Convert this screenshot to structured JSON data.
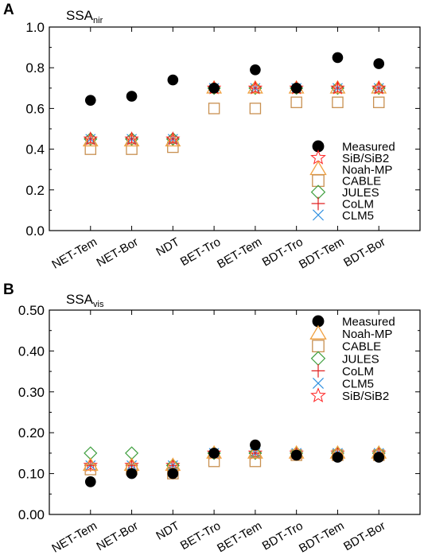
{
  "chart_data": [
    {
      "type": "scatter",
      "panel_label": "A",
      "title_base": "SSA",
      "title_sub": "nir",
      "categories": [
        "NET-Tem",
        "NET-Bor",
        "NDT",
        "BET-Tro",
        "BET-Tem",
        "BDT-Tro",
        "BDT-Tem",
        "BDT-Bor"
      ],
      "ylim": [
        0.0,
        1.0
      ],
      "yticks": [
        0.0,
        0.2,
        0.4,
        0.6,
        0.8,
        1.0
      ],
      "ytick_labels": [
        "0.0",
        "0.2",
        "0.4",
        "0.6",
        "0.8",
        "1.0"
      ],
      "legend_position": "bottom-right",
      "series": [
        {
          "name": "Measured",
          "marker": "filled-circle",
          "color": "#000000",
          "values": [
            0.64,
            0.66,
            0.74,
            0.7,
            0.79,
            0.7,
            0.85,
            0.82
          ]
        },
        {
          "name": "SiB/SiB2",
          "marker": "star",
          "color": "#ff2020",
          "values": [
            0.45,
            0.45,
            0.45,
            0.7,
            0.7,
            0.7,
            0.7,
            0.7
          ]
        },
        {
          "name": "Noah-MP",
          "marker": "triangle",
          "color": "#f0a040",
          "values": [
            0.44,
            0.44,
            0.44,
            0.7,
            0.7,
            0.7,
            0.7,
            0.7
          ]
        },
        {
          "name": "CABLE",
          "marker": "square",
          "color": "#c89050",
          "values": [
            0.4,
            0.4,
            0.41,
            0.6,
            0.6,
            0.63,
            0.63,
            0.63
          ]
        },
        {
          "name": "JULES",
          "marker": "diamond",
          "color": "#40a040",
          "values": [
            0.45,
            0.45,
            0.45,
            0.7,
            0.7,
            0.7,
            0.7,
            0.7
          ]
        },
        {
          "name": "CoLM",
          "marker": "plus",
          "color": "#e02020",
          "values": [
            0.45,
            0.45,
            0.45,
            0.7,
            0.7,
            0.7,
            0.7,
            0.7
          ]
        },
        {
          "name": "CLM5",
          "marker": "x",
          "color": "#3090e0",
          "values": [
            0.45,
            0.45,
            0.45,
            0.7,
            0.7,
            0.7,
            0.7,
            0.7
          ]
        }
      ]
    },
    {
      "type": "scatter",
      "panel_label": "B",
      "title_base": "SSA",
      "title_sub": "vis",
      "categories": [
        "NET-Tem",
        "NET-Bor",
        "NDT",
        "BET-Tro",
        "BET-Tem",
        "BDT-Tro",
        "BDT-Tem",
        "BDT-Bor"
      ],
      "ylim": [
        0.0,
        0.5
      ],
      "yticks": [
        0.0,
        0.1,
        0.2,
        0.3,
        0.4,
        0.5
      ],
      "ytick_labels": [
        "0.00",
        "0.10",
        "0.20",
        "0.30",
        "0.40",
        "0.50"
      ],
      "legend_position": "top-right",
      "series": [
        {
          "name": "Measured",
          "marker": "filled-circle",
          "color": "#000000",
          "values": [
            0.08,
            0.1,
            0.1,
            0.15,
            0.17,
            0.145,
            0.14,
            0.14
          ]
        },
        {
          "name": "Noah-MP",
          "marker": "triangle",
          "color": "#f0a040",
          "values": [
            0.12,
            0.12,
            0.12,
            0.15,
            0.15,
            0.15,
            0.15,
            0.15
          ]
        },
        {
          "name": "CABLE",
          "marker": "square",
          "color": "#c89050",
          "values": [
            0.11,
            0.11,
            0.1,
            0.13,
            0.13,
            0.145,
            0.145,
            0.145
          ]
        },
        {
          "name": "JULES",
          "marker": "diamond",
          "color": "#40a040",
          "values": [
            0.15,
            0.15,
            0.12,
            0.15,
            0.15,
            0.15,
            0.15,
            0.15
          ]
        },
        {
          "name": "CoLM",
          "marker": "plus",
          "color": "#e02020",
          "values": [
            0.12,
            0.12,
            0.12,
            0.15,
            0.15,
            0.15,
            0.15,
            0.15
          ]
        },
        {
          "name": "CLM5",
          "marker": "x",
          "color": "#3090e0",
          "values": [
            0.12,
            0.12,
            0.12,
            0.15,
            0.15,
            0.15,
            0.15,
            0.15
          ]
        },
        {
          "name": "SiB/SiB2",
          "marker": "star",
          "color": "#ff2020",
          "values": [
            0.12,
            0.12,
            0.12,
            0.15,
            0.15,
            0.15,
            0.15,
            0.15
          ]
        }
      ]
    }
  ]
}
